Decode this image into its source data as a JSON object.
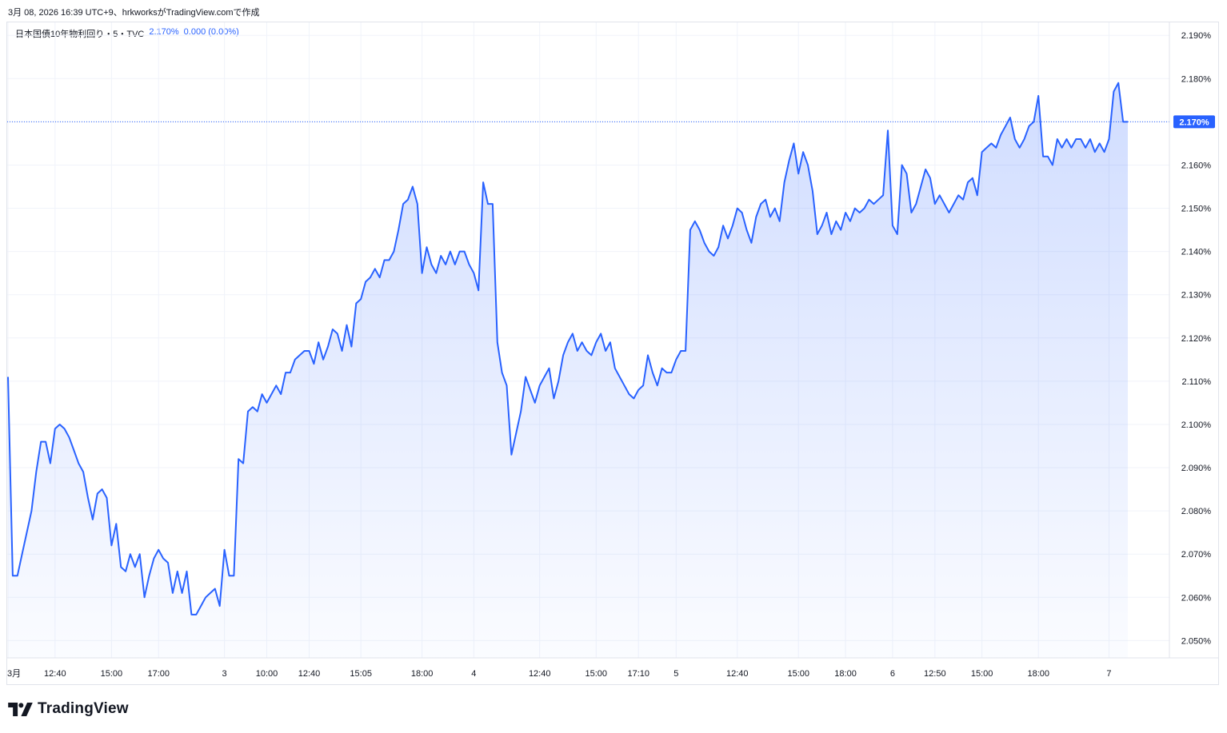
{
  "header": {
    "caption": "3月 08, 2026 16:39 UTC+9、hrkworksがTradingView.comで作成"
  },
  "legend": {
    "symbol": "日本国債10年物利回り・5・TVC",
    "last": "2.170%",
    "change": "0.000 (0.00%)",
    "color": "#2962ff"
  },
  "logo": {
    "text": "TradingView",
    "icon": "tradingview-logo-icon"
  },
  "chart_data": {
    "type": "area",
    "title": "",
    "xlabel": "",
    "ylabel": "",
    "ylim": [
      2.046,
      2.193
    ],
    "line_color": "#2962ff",
    "fill_color": "#2962ff",
    "grid": true,
    "last_value_label": "2.170%",
    "last_value": 2.17,
    "y_ticks": [
      2.05,
      2.06,
      2.07,
      2.08,
      2.09,
      2.1,
      2.11,
      2.12,
      2.13,
      2.14,
      2.15,
      2.16,
      2.17,
      2.18,
      2.19
    ],
    "y_tick_labels": [
      "2.050%",
      "2.060%",
      "2.070%",
      "2.080%",
      "2.090%",
      "2.100%",
      "2.110%",
      "2.120%",
      "2.130%",
      "2.140%",
      "2.150%",
      "2.160%",
      "2.170%",
      "2.180%",
      "2.190%"
    ],
    "x_tick_labels": [
      "3月",
      "12:40",
      "15:00",
      "17:00",
      "3",
      "10:00",
      "12:40",
      "15:05",
      "18:00",
      "4",
      "12:40",
      "15:00",
      "17:10",
      "5",
      "12:40",
      "15:00",
      "18:00",
      "6",
      "12:50",
      "15:00",
      "18:00",
      "7"
    ],
    "x_tick_index": [
      0,
      10,
      22,
      32,
      46,
      55,
      64,
      75,
      88,
      99,
      113,
      125,
      134,
      142,
      155,
      168,
      178,
      188,
      197,
      207,
      219,
      234
    ],
    "values": [
      2.111,
      2.065,
      2.065,
      2.07,
      2.075,
      2.08,
      2.089,
      2.096,
      2.096,
      2.091,
      2.099,
      2.1,
      2.099,
      2.097,
      2.094,
      2.091,
      2.089,
      2.083,
      2.078,
      2.084,
      2.085,
      2.083,
      2.072,
      2.077,
      2.067,
      2.066,
      2.07,
      2.067,
      2.07,
      2.06,
      2.065,
      2.069,
      2.071,
      2.069,
      2.068,
      2.061,
      2.066,
      2.061,
      2.066,
      2.056,
      2.056,
      2.058,
      2.06,
      2.061,
      2.062,
      2.058,
      2.071,
      2.065,
      2.065,
      2.092,
      2.091,
      2.103,
      2.104,
      2.103,
      2.107,
      2.105,
      2.107,
      2.109,
      2.107,
      2.112,
      2.112,
      2.115,
      2.116,
      2.117,
      2.117,
      2.114,
      2.119,
      2.115,
      2.118,
      2.122,
      2.121,
      2.117,
      2.123,
      2.118,
      2.128,
      2.129,
      2.133,
      2.134,
      2.136,
      2.134,
      2.138,
      2.138,
      2.14,
      2.145,
      2.151,
      2.152,
      2.155,
      2.151,
      2.135,
      2.141,
      2.137,
      2.135,
      2.139,
      2.137,
      2.14,
      2.137,
      2.14,
      2.14,
      2.137,
      2.135,
      2.131,
      2.156,
      2.151,
      2.151,
      2.119,
      2.112,
      2.109,
      2.093,
      2.098,
      2.103,
      2.111,
      2.108,
      2.105,
      2.109,
      2.111,
      2.113,
      2.106,
      2.11,
      2.116,
      2.119,
      2.121,
      2.117,
      2.119,
      2.117,
      2.116,
      2.119,
      2.121,
      2.117,
      2.119,
      2.113,
      2.111,
      2.109,
      2.107,
      2.106,
      2.108,
      2.109,
      2.116,
      2.112,
      2.109,
      2.113,
      2.112,
      2.112,
      2.115,
      2.117,
      2.117,
      2.145,
      2.147,
      2.145,
      2.142,
      2.14,
      2.139,
      2.141,
      2.146,
      2.143,
      2.146,
      2.15,
      2.149,
      2.145,
      2.142,
      2.148,
      2.151,
      2.152,
      2.148,
      2.15,
      2.147,
      2.156,
      2.161,
      2.165,
      2.158,
      2.163,
      2.16,
      2.154,
      2.144,
      2.146,
      2.149,
      2.144,
      2.147,
      2.145,
      2.149,
      2.147,
      2.15,
      2.149,
      2.15,
      2.152,
      2.151,
      2.152,
      2.153,
      2.168,
      2.146,
      2.144,
      2.16,
      2.158,
      2.149,
      2.151,
      2.155,
      2.159,
      2.157,
      2.151,
      2.153,
      2.151,
      2.149,
      2.151,
      2.153,
      2.152,
      2.156,
      2.157,
      2.153,
      2.163,
      2.164,
      2.165,
      2.164,
      2.167,
      2.169,
      2.171,
      2.166,
      2.164,
      2.166,
      2.169,
      2.17,
      2.176,
      2.162,
      2.162,
      2.16,
      2.166,
      2.164,
      2.166,
      2.164,
      2.166,
      2.166,
      2.164,
      2.166,
      2.163,
      2.165,
      2.163,
      2.166,
      2.177,
      2.179,
      2.17,
      2.17
    ]
  }
}
